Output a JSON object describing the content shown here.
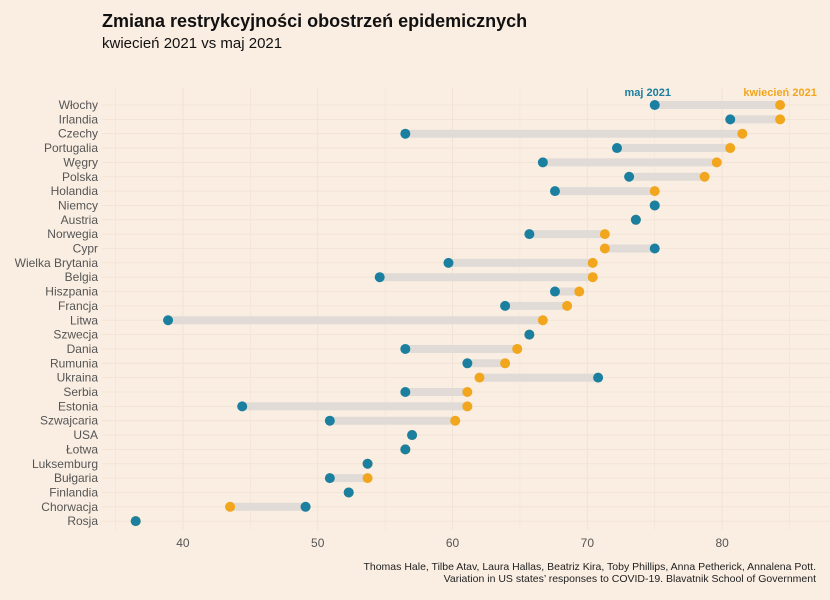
{
  "colors": {
    "background": "#faeee2",
    "april": "#f2a61e",
    "may": "#1b7fa0",
    "segment": "#e0dbd6",
    "grid": "#f0e2d4"
  },
  "chart_data": {
    "type": "dumbbell",
    "title": "Zmiana restrykcyjności obostrzeń epidemicznych",
    "subtitle": "kwiecień 2021 vs maj 2021",
    "xlim": [
      34,
      88
    ],
    "x_ticks": [
      40,
      50,
      60,
      70,
      80
    ],
    "legend": [
      {
        "label": "maj 2021",
        "key": "may"
      },
      {
        "label": "kwiecień 2021",
        "key": "april"
      }
    ],
    "categories": [
      "Włochy",
      "Irlandia",
      "Czechy",
      "Portugalia",
      "Węgry",
      "Polska",
      "Holandia",
      "Niemcy",
      "Austria",
      "Norwegia",
      "Cypr",
      "Wielka Brytania",
      "Belgia",
      "Hiszpania",
      "Francja",
      "Litwa",
      "Szwecja",
      "Dania",
      "Rumunia",
      "Ukraina",
      "Serbia",
      "Estonia",
      "Szwajcaria",
      "USA",
      "Łotwa",
      "Luksemburg",
      "Bułgaria",
      "Finlandia",
      "Chorwacja",
      "Rosja"
    ],
    "series": [
      {
        "name": "kwiecień 2021",
        "key": "april",
        "values": [
          84.3,
          84.3,
          81.5,
          80.6,
          79.6,
          78.7,
          75.0,
          75.0,
          73.6,
          71.3,
          71.3,
          70.4,
          70.4,
          69.4,
          68.5,
          66.7,
          65.7,
          64.8,
          63.9,
          62.0,
          61.1,
          61.1,
          60.2,
          57.0,
          56.5,
          53.7,
          53.7,
          52.3,
          43.5,
          36.5
        ]
      },
      {
        "name": "maj 2021",
        "key": "may",
        "values": [
          75.0,
          80.6,
          56.5,
          72.2,
          66.7,
          73.1,
          67.6,
          75.0,
          73.6,
          65.7,
          75.0,
          59.7,
          54.6,
          67.6,
          63.9,
          38.9,
          65.7,
          56.5,
          61.1,
          70.8,
          56.5,
          44.4,
          50.9,
          57.0,
          56.5,
          53.7,
          50.9,
          52.3,
          49.1,
          36.5
        ]
      }
    ],
    "caption": [
      "Thomas Hale, Tilbe Atav, Laura Hallas, Beatriz Kira, Toby Phillips, Anna Petherick, Annalena Pott.",
      "Variation in US states’ responses to COVID-19. Blavatnik School of Government"
    ]
  }
}
